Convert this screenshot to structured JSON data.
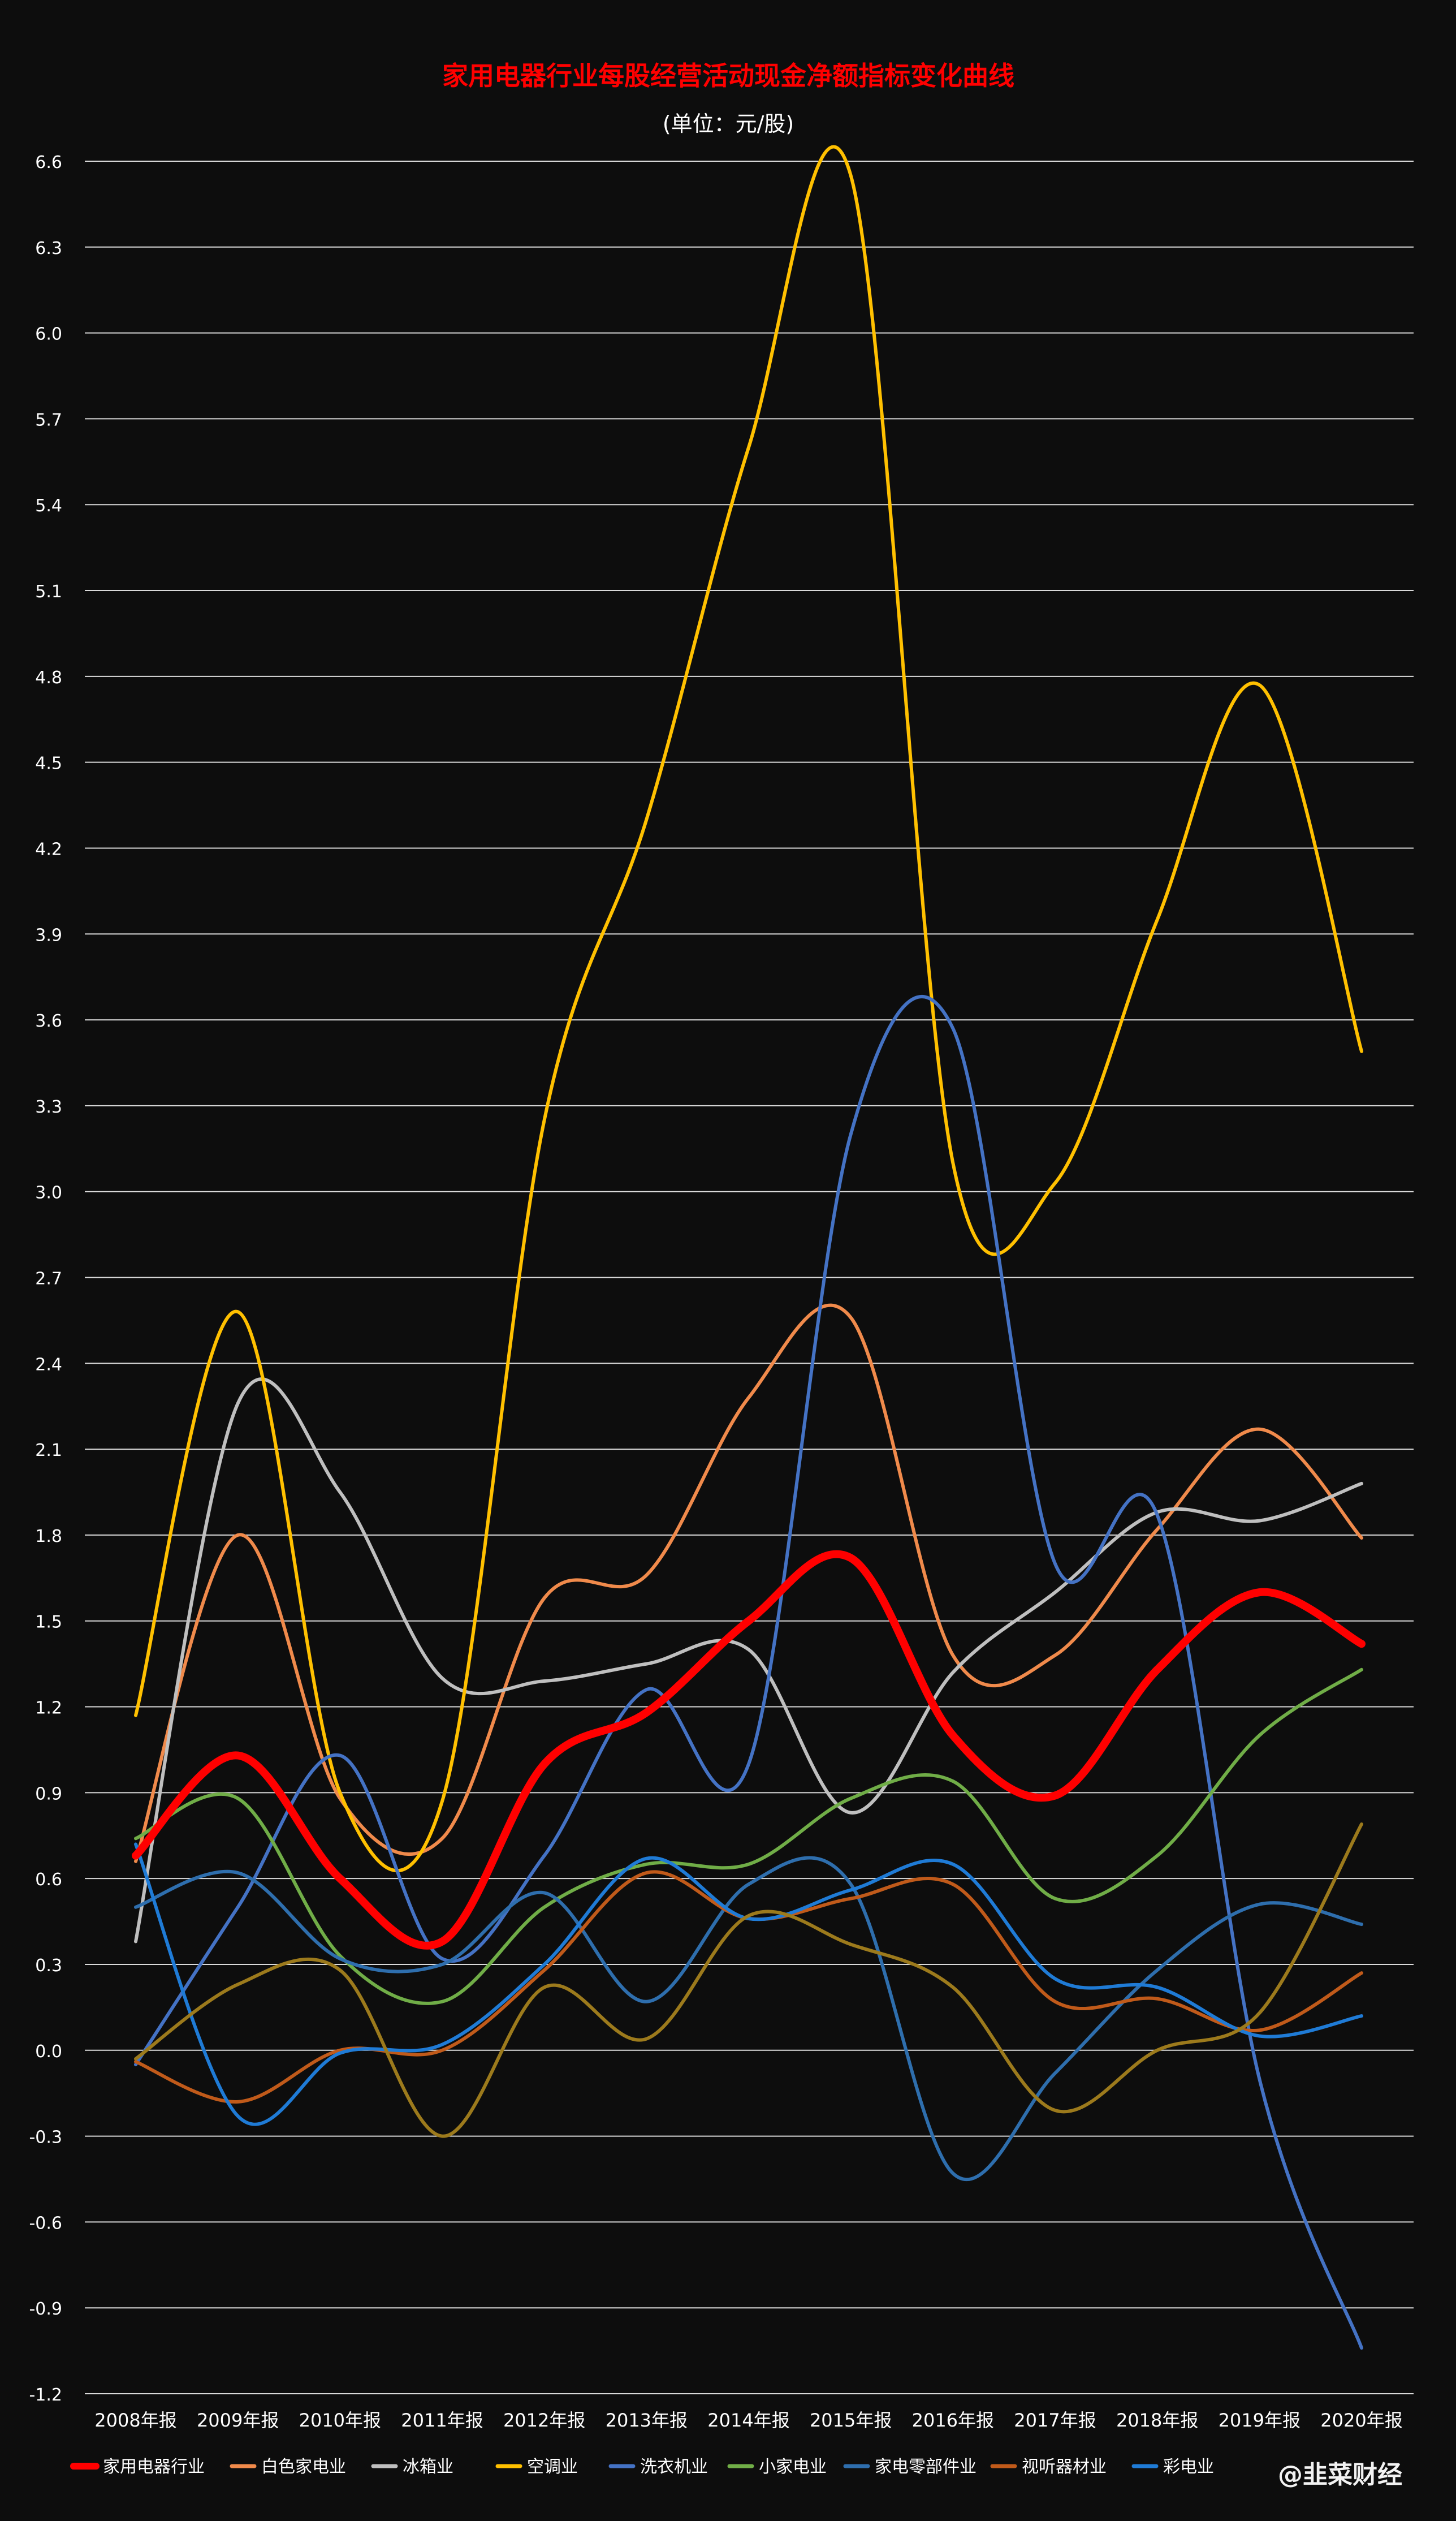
{
  "chart_data": {
    "type": "line",
    "title": "家用电器行业每股经营活动现金净额指标变化曲线",
    "subtitle": "(单位：元/股)",
    "xlabel": "",
    "ylabel": "",
    "categories": [
      "2008年报",
      "2009年报",
      "2010年报",
      "2011年报",
      "2012年报",
      "2013年报",
      "2014年报",
      "2015年报",
      "2016年报",
      "2017年报",
      "2018年报",
      "2019年报",
      "2020年报"
    ],
    "ylim": [
      -1.2,
      6.6
    ],
    "yticks": [
      "6.6",
      "6.3",
      "6.0",
      "5.7",
      "5.4",
      "5.1",
      "4.8",
      "4.5",
      "4.2",
      "3.9",
      "3.6",
      "3.3",
      "3.0",
      "2.7",
      "2.4",
      "2.1",
      "1.8",
      "1.5",
      "1.2",
      "0.9",
      "0.6",
      "0.3",
      "0.0",
      "-0.3",
      "-0.6",
      "-0.9",
      "-1.2"
    ],
    "grid": true,
    "legend_position": "bottom",
    "series": [
      {
        "name": "家用电器行业",
        "color": "#ff0000",
        "width": 14,
        "values": [
          0.68,
          1.03,
          0.6,
          0.38,
          1.0,
          1.18,
          1.5,
          1.72,
          1.1,
          0.89,
          1.33,
          1.6,
          1.42
        ]
      },
      {
        "name": "白色家电业",
        "color": "#f08a4b",
        "width": 6,
        "values": [
          0.66,
          1.8,
          0.88,
          0.74,
          1.58,
          1.66,
          2.28,
          2.56,
          1.38,
          1.38,
          1.82,
          2.17,
          1.79
        ]
      },
      {
        "name": "冰箱业",
        "color": "#bfbfbf",
        "width": 6,
        "values": [
          0.38,
          2.26,
          1.95,
          1.3,
          1.29,
          1.35,
          1.4,
          0.83,
          1.32,
          1.6,
          1.88,
          1.85,
          1.98
        ]
      },
      {
        "name": "空调业",
        "color": "#ffc000",
        "width": 6,
        "values": [
          1.17,
          2.58,
          0.9,
          0.87,
          3.25,
          4.3,
          5.6,
          6.55,
          3.1,
          3.03,
          3.95,
          4.77,
          3.49
        ]
      },
      {
        "name": "洗衣机业",
        "color": "#4472c4",
        "width": 6,
        "values": [
          -0.05,
          0.5,
          1.03,
          0.32,
          0.68,
          1.26,
          1.0,
          3.2,
          3.57,
          1.7,
          1.87,
          -0.1,
          -1.04
        ]
      },
      {
        "name": "小家电业",
        "color": "#70ad47",
        "width": 6,
        "values": [
          0.74,
          0.88,
          0.33,
          0.17,
          0.5,
          0.65,
          0.65,
          0.88,
          0.94,
          0.53,
          0.68,
          1.1,
          1.33
        ]
      },
      {
        "name": "家电零部件业",
        "color": "#2e6ead",
        "width": 6,
        "values": [
          0.5,
          0.62,
          0.32,
          0.3,
          0.55,
          0.17,
          0.58,
          0.58,
          -0.43,
          -0.08,
          0.28,
          0.51,
          0.44
        ]
      },
      {
        "name": "视听器材业",
        "color": "#c05a1a",
        "width": 6,
        "values": [
          -0.04,
          -0.18,
          0.0,
          0.0,
          0.28,
          0.62,
          0.46,
          0.53,
          0.58,
          0.17,
          0.18,
          0.07,
          0.27
        ]
      },
      {
        "name": "彩电业",
        "color": "#1f7bd6",
        "width": 6,
        "values": [
          0.72,
          -0.23,
          -0.01,
          0.02,
          0.3,
          0.67,
          0.46,
          0.56,
          0.65,
          0.25,
          0.22,
          0.05,
          0.12
        ]
      },
      {
        "name": "",
        "color": "#9c7a1c",
        "width": 6,
        "values": [
          -0.03,
          0.23,
          0.28,
          -0.3,
          0.22,
          0.04,
          0.47,
          0.37,
          0.22,
          -0.21,
          0.0,
          0.13,
          0.79
        ]
      }
    ],
    "watermark": "@韭菜财经"
  }
}
